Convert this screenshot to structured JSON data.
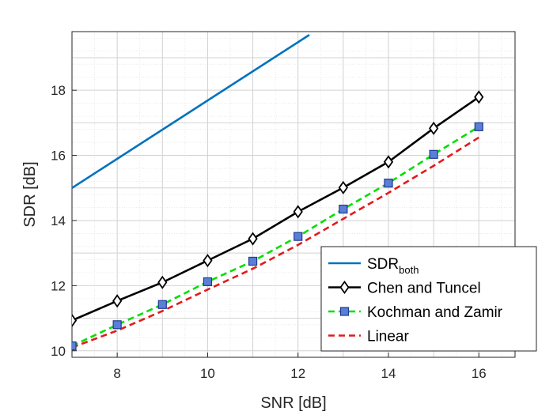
{
  "chart_data": {
    "type": "line",
    "xlabel": "SNR [dB]",
    "ylabel": "SDR [dB]",
    "xlim": [
      7,
      16.8
    ],
    "ylim": [
      9.8,
      19.8
    ],
    "xticks": [
      8,
      10,
      12,
      14,
      16
    ],
    "yticks": [
      10,
      12,
      14,
      16,
      18
    ],
    "grid": true,
    "minor_grid": true,
    "legend_position": "bottom-right",
    "series": [
      {
        "name": "SDR",
        "name_subscript": "both",
        "color": "#0072BD",
        "line_style": "solid",
        "marker": "none",
        "x": [
          7,
          12.25
        ],
        "y": [
          15.0,
          19.7
        ]
      },
      {
        "name": "Chen and Tuncel",
        "color": "#000000",
        "line_style": "solid",
        "marker": "diamond",
        "x": [
          7,
          8,
          9,
          10,
          11,
          12,
          13,
          14,
          15,
          16
        ],
        "y": [
          10.93,
          11.53,
          12.1,
          12.77,
          13.44,
          14.27,
          15.01,
          15.8,
          16.83,
          17.79
        ]
      },
      {
        "name": "Kochman and Zamir",
        "color": "#00E000",
        "marker_fill": "#5B7FD6",
        "line_style": "dashed",
        "marker": "square",
        "x": [
          7,
          8,
          9,
          10,
          11,
          12,
          13,
          14,
          15,
          16
        ],
        "y": [
          10.15,
          10.8,
          11.42,
          12.12,
          12.75,
          13.51,
          14.35,
          15.15,
          16.03,
          16.88
        ]
      },
      {
        "name": "Linear",
        "color": "#E31A1C",
        "line_style": "dashed",
        "marker": "none",
        "x": [
          7,
          8,
          9,
          10,
          11,
          12,
          13,
          14,
          15,
          16
        ],
        "y": [
          10.1,
          10.62,
          11.22,
          11.88,
          12.52,
          13.25,
          14.05,
          14.85,
          15.68,
          16.55
        ]
      }
    ]
  }
}
